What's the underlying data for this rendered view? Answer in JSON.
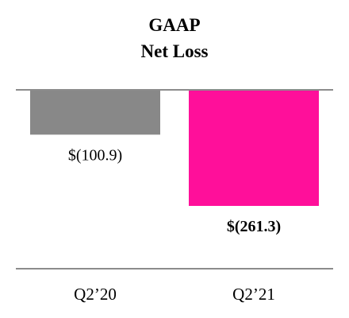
{
  "chart_data": {
    "type": "bar",
    "title": "GAAP",
    "subtitle": "Net Loss",
    "categories": [
      "Q2’20",
      "Q2’21"
    ],
    "values": [
      -100.9,
      -261.3
    ],
    "data_labels": [
      "$(100.9)",
      "$(261.3)"
    ],
    "data_label_bold": [
      false,
      true
    ],
    "colors": [
      "#888888",
      "#ff0f9a"
    ],
    "ylim": [
      -400,
      0
    ],
    "grid": false,
    "legend": "none"
  }
}
